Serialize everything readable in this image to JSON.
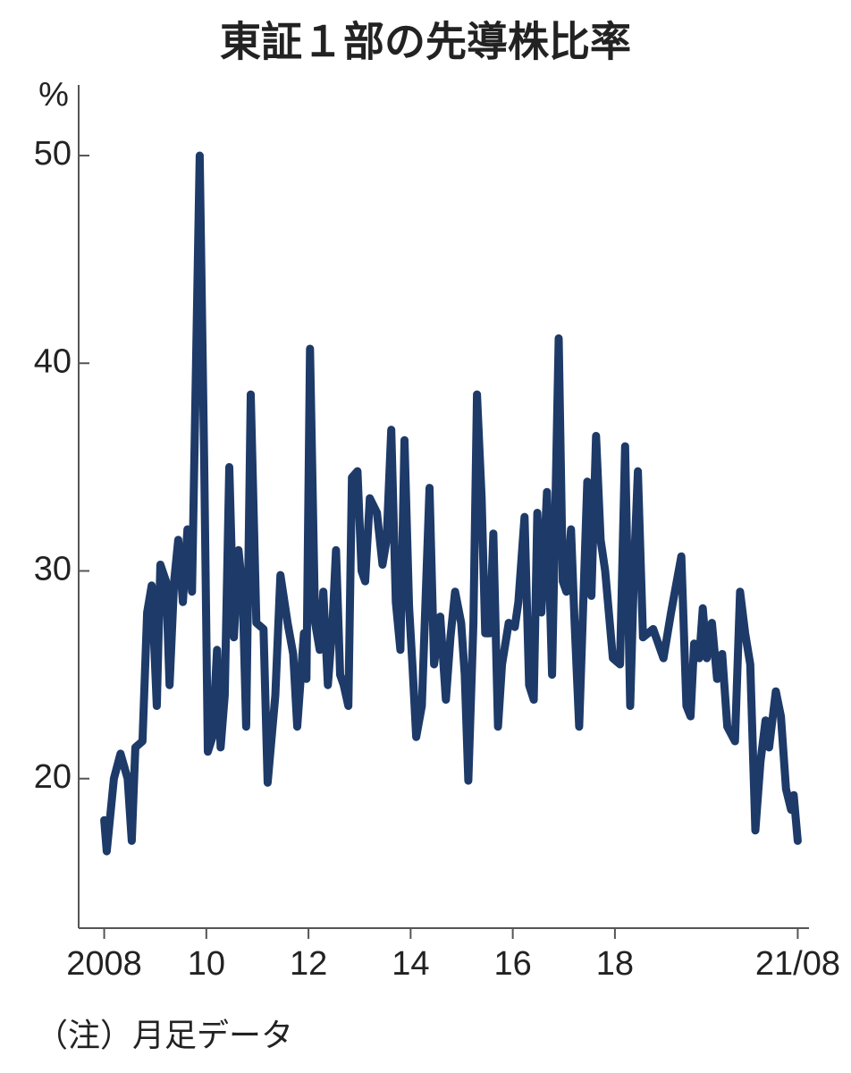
{
  "chart_data": {
    "type": "line",
    "title": "東証１部の先導株比率",
    "y_label": "%",
    "note": "（注）月足データ",
    "color": "#1d3a68",
    "xlim": [
      2007.5,
      2021.8
    ],
    "ylim": [
      12.8,
      53.4
    ],
    "xticks": [
      2008,
      {
        "value": 2010,
        "label": "10"
      },
      {
        "value": 2012,
        "label": "12"
      },
      {
        "value": 2014,
        "label": "14"
      },
      {
        "value": 2016,
        "label": "16"
      },
      {
        "value": 2018,
        "label": "18"
      },
      {
        "value": 2021.58,
        "label": "21/08"
      }
    ],
    "yticks": [
      20,
      30,
      40,
      50
    ],
    "x": [
      2008.0,
      2008.05,
      2008.19,
      2008.32,
      2008.46,
      2008.54,
      2008.61,
      2008.75,
      2008.84,
      2008.93,
      2009.03,
      2009.1,
      2009.21,
      2009.28,
      2009.37,
      2009.45,
      2009.54,
      2009.63,
      2009.72,
      2009.87,
      2009.96,
      2010.03,
      2010.12,
      2010.21,
      2010.28,
      2010.36,
      2010.45,
      2010.54,
      2010.63,
      2010.71,
      2010.78,
      2010.87,
      2010.98,
      2011.12,
      2011.2,
      2011.35,
      2011.45,
      2011.59,
      2011.7,
      2011.78,
      2011.91,
      2011.96,
      2012.03,
      2012.13,
      2012.22,
      2012.29,
      2012.38,
      2012.47,
      2012.54,
      2012.62,
      2012.69,
      2012.78,
      2012.85,
      2012.96,
      2013.04,
      2013.11,
      2013.2,
      2013.34,
      2013.45,
      2013.53,
      2013.62,
      2013.71,
      2013.8,
      2013.88,
      2013.97,
      2014.04,
      2014.11,
      2014.22,
      2014.37,
      2014.46,
      2014.58,
      2014.69,
      2014.78,
      2014.87,
      2014.99,
      2015.06,
      2015.13,
      2015.23,
      2015.3,
      2015.39,
      2015.46,
      2015.55,
      2015.62,
      2015.71,
      2015.79,
      2015.92,
      2016.04,
      2016.11,
      2016.23,
      2016.32,
      2016.41,
      2016.48,
      2016.56,
      2016.67,
      2016.77,
      2016.9,
      2016.98,
      2017.05,
      2017.14,
      2017.21,
      2017.3,
      2017.46,
      2017.54,
      2017.63,
      2017.72,
      2017.81,
      2017.96,
      2018.1,
      2018.2,
      2018.3,
      2018.38,
      2018.45,
      2018.55,
      2018.75,
      2018.95,
      2019.1,
      2019.3,
      2019.4,
      2019.48,
      2019.55,
      2019.65,
      2019.72,
      2019.8,
      2019.9,
      2020.0,
      2020.1,
      2020.2,
      2020.35,
      2020.45,
      2020.55,
      2020.65,
      2020.75,
      2020.85,
      2020.95,
      2021.02,
      2021.15,
      2021.25,
      2021.35,
      2021.45,
      2021.5,
      2021.58
    ],
    "values": [
      18,
      16.5,
      20,
      21.2,
      20,
      17,
      21.5,
      21.8,
      28,
      29.3,
      23.5,
      30.3,
      29.5,
      24.5,
      29.5,
      31.5,
      28.5,
      32,
      29,
      50,
      35,
      21.3,
      22,
      26.2,
      21.5,
      24,
      35,
      26.8,
      31,
      29,
      22.5,
      38.5,
      27.5,
      27.2,
      19.8,
      24,
      29.8,
      27.5,
      26,
      22.5,
      27,
      24.8,
      40.7,
      27.5,
      26.2,
      29,
      24.5,
      27.5,
      31,
      25,
      24.5,
      23.5,
      34.5,
      34.8,
      30,
      29.5,
      33.5,
      32.8,
      30.3,
      31.5,
      36.8,
      28.5,
      26.2,
      36.3,
      28.3,
      25.3,
      22,
      23.5,
      34,
      25.5,
      27.8,
      23.8,
      26.8,
      29,
      27.5,
      25,
      19.9,
      27.5,
      38.5,
      33.5,
      27,
      27,
      31.8,
      22.5,
      25.5,
      27.5,
      27.3,
      28.5,
      32.6,
      24.5,
      23.8,
      32.8,
      28,
      33.8,
      25,
      41.2,
      29.5,
      29,
      32,
      27.5,
      22.5,
      34.3,
      28.8,
      36.5,
      31.5,
      30,
      25.8,
      25.5,
      36,
      23.5,
      30.5,
      34.8,
      26.8,
      27.2,
      25.8,
      28,
      30.7,
      23.5,
      23,
      26.5,
      25.8,
      28.2,
      25.8,
      27.5,
      24.8,
      26,
      22.5,
      21.8,
      29,
      27,
      25.5,
      17.5,
      20.8,
      22.8,
      21.5,
      24.2,
      23,
      19.5,
      18.5,
      19.2,
      17
    ]
  }
}
